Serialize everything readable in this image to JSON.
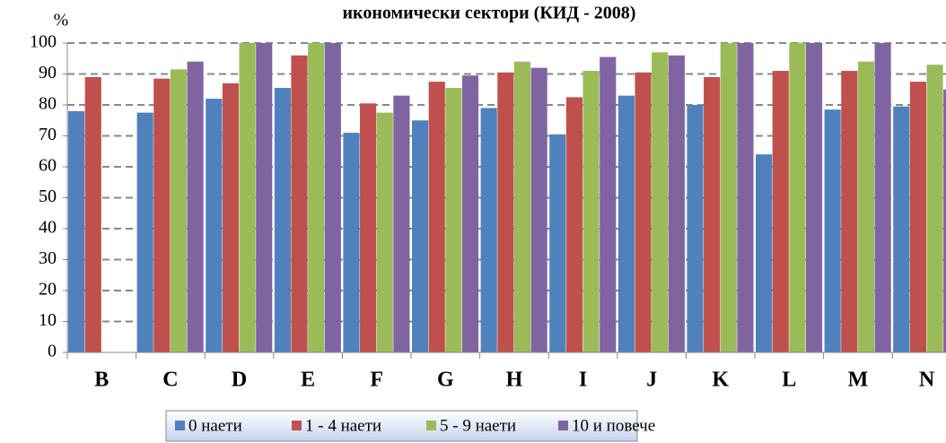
{
  "chart_data": {
    "type": "bar",
    "title": "икономически сектори (КИД - 2008)",
    "y_label": "%",
    "categories": [
      "B",
      "C",
      "D",
      "E",
      "F",
      "G",
      "H",
      "I",
      "J",
      "K",
      "L",
      "M",
      "N"
    ],
    "series": [
      {
        "name": "0 наети",
        "color": "#4f81bd",
        "values": [
          78,
          77.5,
          82,
          85.5,
          71,
          75,
          79,
          70.5,
          83,
          80,
          64,
          78.5,
          79.5
        ]
      },
      {
        "name": "1 - 4 наети",
        "color": "#c0504d",
        "values": [
          89,
          88.5,
          87,
          96,
          80.5,
          87.5,
          90.5,
          82.5,
          90.5,
          89,
          91,
          91,
          87.5
        ]
      },
      {
        "name": "5 - 9 наети",
        "color": "#9bbb59",
        "values": [
          null,
          91.5,
          100,
          100,
          77.5,
          85.5,
          94,
          91,
          97,
          100,
          100,
          94,
          93
        ]
      },
      {
        "name": "10 и повече",
        "color": "#8064a2",
        "values": [
          null,
          94,
          100,
          100,
          83,
          89.5,
          92,
          95.5,
          96,
          100,
          100,
          100,
          85
        ]
      }
    ],
    "ylim": [
      0,
      100
    ],
    "yticks": [
      0,
      10,
      20,
      30,
      40,
      50,
      60,
      70,
      80,
      90,
      100
    ],
    "grid": true
  }
}
